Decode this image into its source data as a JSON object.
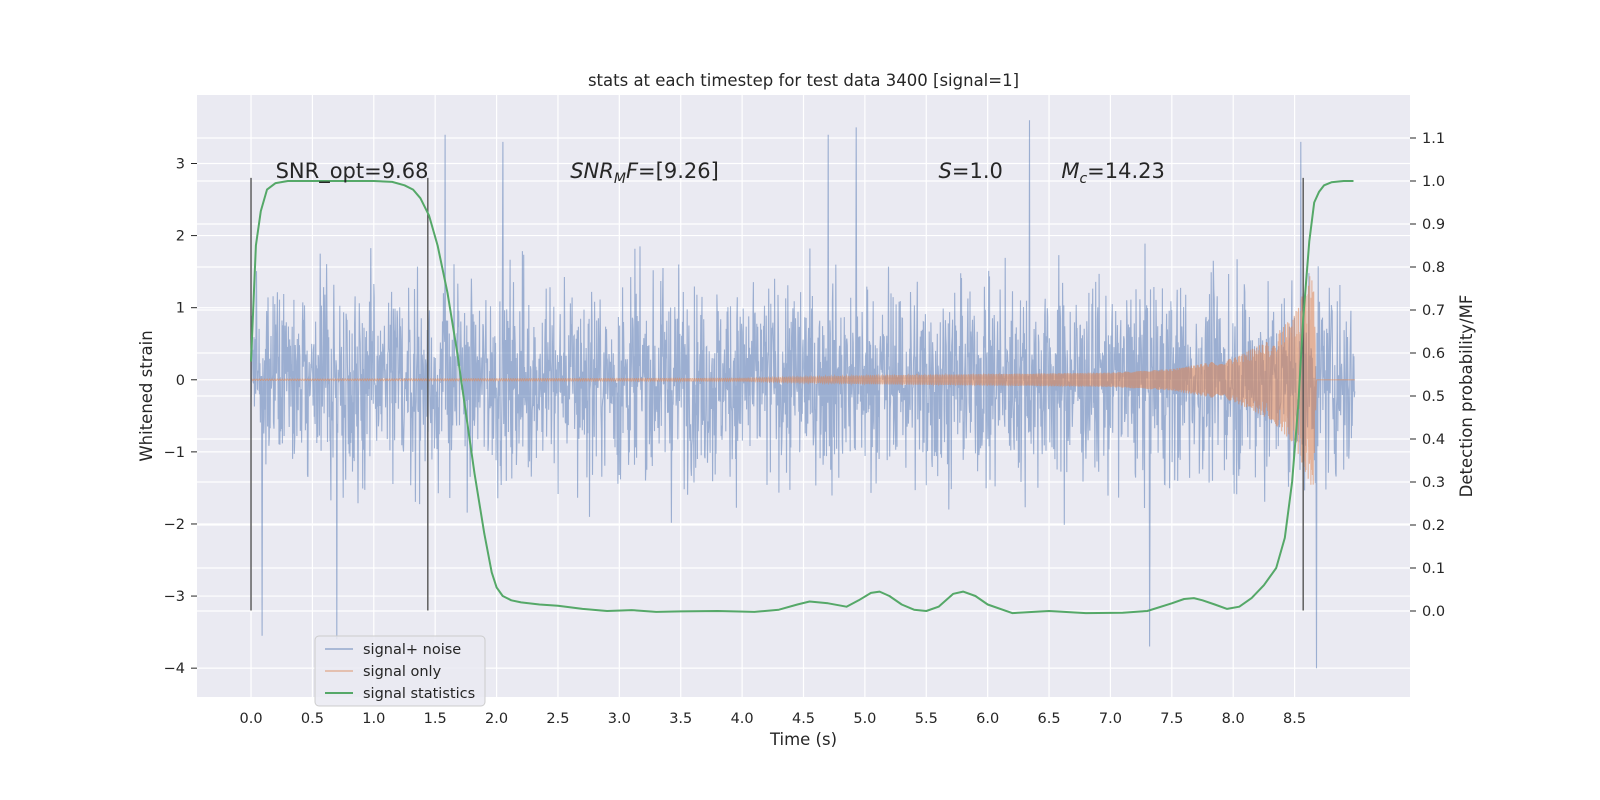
{
  "chart_data": {
    "type": "line",
    "title": "stats at each timestep for test data 3400 [signal=1]",
    "xlabel": "Time (s)",
    "ylabel": "Whitened strain",
    "ylabel_right": "Detection probability/MF",
    "xlim": [
      -0.44,
      9.44
    ],
    "ylim": [
      -4.4,
      3.95
    ],
    "ylim_right": [
      -0.2,
      1.2
    ],
    "x_ticks": [
      "0.0",
      "0.5",
      "1.0",
      "1.5",
      "2.0",
      "2.5",
      "3.0",
      "3.5",
      "4.0",
      "4.5",
      "5.0",
      "5.5",
      "6.0",
      "6.5",
      "7.0",
      "7.5",
      "8.0",
      "8.5"
    ],
    "y_ticks": [
      "−4",
      "−3",
      "−2",
      "−1",
      "0",
      "1",
      "2",
      "3"
    ],
    "y_right_ticks": [
      "0.0",
      "0.1",
      "0.2",
      "0.3",
      "0.4",
      "0.5",
      "0.6",
      "0.7",
      "0.8",
      "0.9",
      "1.0",
      "1.1"
    ],
    "grid": true,
    "legend_position": "lower-left",
    "annotations": [
      {
        "text": "SNR_opt=9.68",
        "x": 0.2,
        "y": 2.8
      },
      {
        "text": "=[9.26]",
        "prefix_italic": "SNR",
        "sub": "M",
        "suffix_italic": "F",
        "x": 2.6,
        "y": 2.8
      },
      {
        "text": "=1.0",
        "prefix_italic": "S",
        "x": 5.6,
        "y": 2.8
      },
      {
        "text": "=14.23",
        "prefix_italic": "M",
        "sub": "c",
        "x": 6.6,
        "y": 2.8
      }
    ],
    "vertical_markers": [
      {
        "x": 0.0,
        "ymin": -3.2,
        "ymax": 2.8
      },
      {
        "x": 1.44,
        "ymin": -3.2,
        "ymax": 2.8
      },
      {
        "x": 8.57,
        "ymin": -3.2,
        "ymax": 2.8
      }
    ],
    "series": [
      {
        "name": "signal+ noise",
        "color": "#4c72b0",
        "x_range": [
          0.0,
          8.99
        ],
        "envelope_typical": [
          -1.6,
          1.6
        ],
        "notable_peaks": [
          {
            "x": 0.09,
            "y": -3.55
          },
          {
            "x": 0.7,
            "y": -3.6
          },
          {
            "x": 1.58,
            "y": 3.4
          },
          {
            "x": 2.05,
            "y": 3.3
          },
          {
            "x": 4.7,
            "y": 3.4
          },
          {
            "x": 4.93,
            "y": 3.5
          },
          {
            "x": 6.34,
            "y": 3.6
          },
          {
            "x": 7.32,
            "y": -3.7
          },
          {
            "x": 8.55,
            "y": 3.3
          },
          {
            "x": 8.68,
            "y": -4.0
          }
        ]
      },
      {
        "name": "signal only",
        "color": "#dd8452",
        "x_range": [
          0.0,
          8.99
        ],
        "description_points": [
          {
            "x": 0.0,
            "amplitude": 0.01
          },
          {
            "x": 4.0,
            "amplitude": 0.02
          },
          {
            "x": 5.0,
            "amplitude": 0.06
          },
          {
            "x": 6.0,
            "amplitude": 0.08
          },
          {
            "x": 7.0,
            "amplitude": 0.1
          },
          {
            "x": 7.5,
            "amplitude": 0.15
          },
          {
            "x": 8.0,
            "amplitude": 0.3
          },
          {
            "x": 8.3,
            "amplitude": 0.55
          },
          {
            "x": 8.5,
            "amplitude": 0.9
          },
          {
            "x": 8.65,
            "amplitude": 1.55
          },
          {
            "x": 8.68,
            "amplitude": 0.0
          }
        ]
      },
      {
        "name": "signal statistics",
        "color": "#55a868",
        "axis": "right",
        "x": [
          0.0,
          0.04,
          0.08,
          0.13,
          0.2,
          0.3,
          0.45,
          0.6,
          0.8,
          1.0,
          1.15,
          1.25,
          1.32,
          1.38,
          1.45,
          1.52,
          1.6,
          1.68,
          1.75,
          1.82,
          1.9,
          1.96,
          2.0,
          2.05,
          2.12,
          2.2,
          2.35,
          2.5,
          2.7,
          2.9,
          3.1,
          3.3,
          3.5,
          3.8,
          4.1,
          4.3,
          4.45,
          4.55,
          4.7,
          4.85,
          4.95,
          5.05,
          5.12,
          5.2,
          5.3,
          5.4,
          5.5,
          5.6,
          5.72,
          5.8,
          5.9,
          6.0,
          6.2,
          6.5,
          6.8,
          7.1,
          7.3,
          7.5,
          7.6,
          7.68,
          7.75,
          7.85,
          7.95,
          8.05,
          8.15,
          8.25,
          8.35,
          8.42,
          8.48,
          8.53,
          8.57,
          8.62,
          8.66,
          8.7,
          8.74,
          8.8,
          8.9,
          8.98
        ],
        "y": [
          0.58,
          0.85,
          0.93,
          0.98,
          0.995,
          1.0,
          1.0,
          1.0,
          1.0,
          1.0,
          0.998,
          0.99,
          0.98,
          0.96,
          0.92,
          0.85,
          0.74,
          0.6,
          0.46,
          0.32,
          0.18,
          0.09,
          0.055,
          0.035,
          0.025,
          0.02,
          0.015,
          0.012,
          0.005,
          0.0,
          0.002,
          -0.002,
          -0.001,
          0.0,
          -0.002,
          0.003,
          0.015,
          0.022,
          0.018,
          0.01,
          0.025,
          0.042,
          0.045,
          0.035,
          0.015,
          0.003,
          0.0,
          0.01,
          0.04,
          0.045,
          0.035,
          0.015,
          -0.005,
          0.0,
          -0.005,
          -0.004,
          0.0,
          0.018,
          0.028,
          0.03,
          0.025,
          0.015,
          0.005,
          0.01,
          0.03,
          0.06,
          0.1,
          0.17,
          0.3,
          0.48,
          0.68,
          0.86,
          0.95,
          0.975,
          0.99,
          0.997,
          1.0,
          1.0
        ]
      }
    ]
  }
}
